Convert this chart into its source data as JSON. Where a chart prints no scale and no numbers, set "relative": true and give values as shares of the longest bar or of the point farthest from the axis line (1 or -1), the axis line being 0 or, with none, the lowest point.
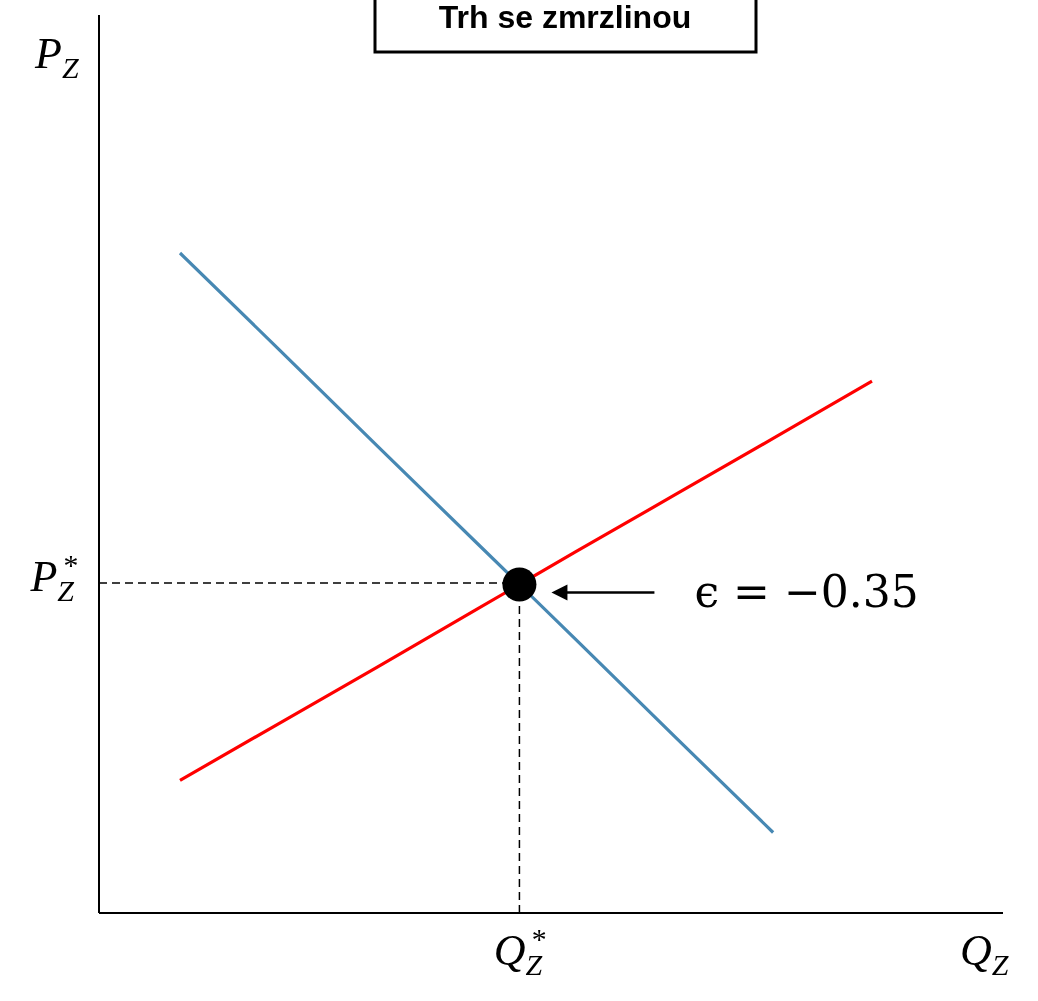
{
  "chart_data": {
    "type": "line",
    "title": "Trh se zmrzlinou",
    "xlabel": "Q$_{Z}$",
    "ylabel": "P$_{Z}$",
    "relative": true,
    "marker": "none",
    "line_style": "solid",
    "categories": [
      null,
      null,
      null,
      null,
      null,
      null,
      null,
      null
    ],
    "series": [
      {
        "color": "#4788b3",
        "values": [
          1,
          0.854,
          0.707,
          0.561,
          0.415,
          0.268,
          0.122,
          null
        ]
      },
      {
        "color": "#ff0000",
        "values": [
          0.201,
          0.287,
          0.373,
          0.46,
          0.547,
          0.633,
          0.719,
          0.806
        ]
      }
    ],
    "ref_lines": [
      {
        "axis": "y",
        "value": 0.5,
        "label": "P$_{Z}$$^{*}$",
        "color": "#000000",
        "line_style": "dashed"
      }
    ],
    "annotations": [
      "ϵ = −0.35",
      "Q$_{Z}$$^{*}$"
    ]
  }
}
